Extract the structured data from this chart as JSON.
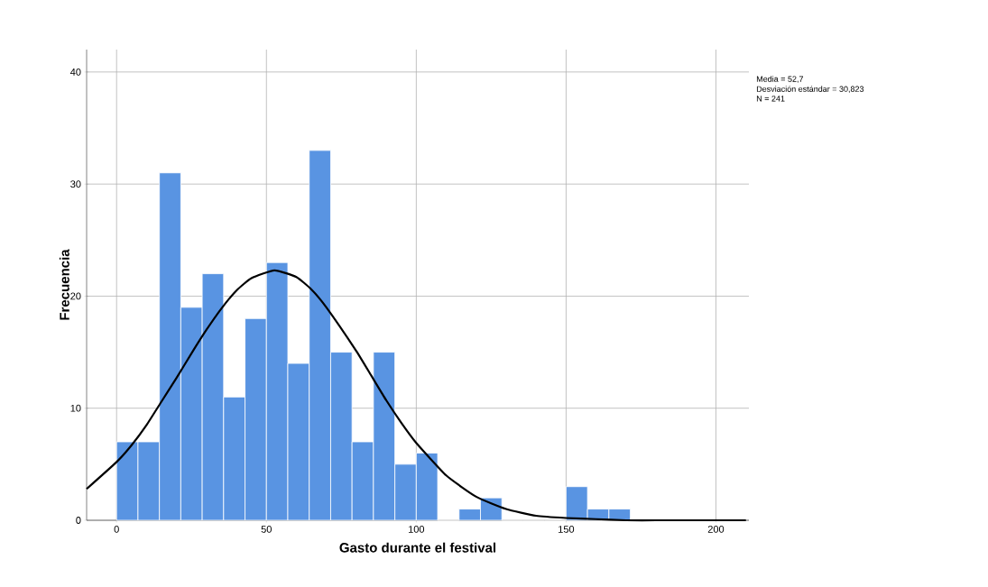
{
  "chart_data": {
    "type": "histogram",
    "xlabel": "Gasto durante el festival",
    "ylabel": "Frecuencia",
    "bins": [
      0,
      7.14,
      14.29,
      21.43,
      28.57,
      35.71,
      42.86,
      50,
      57.14,
      64.29,
      71.43,
      78.57,
      85.71,
      92.86,
      100,
      107.14,
      114.29,
      121.43,
      128.57,
      135.71,
      142.86,
      150,
      157.14,
      164.29,
      171.43
    ],
    "values": [
      7,
      7,
      31,
      19,
      22,
      11,
      18,
      23,
      14,
      33,
      15,
      7,
      15,
      5,
      6,
      0,
      1,
      2,
      0,
      0,
      0,
      3,
      1,
      1
    ],
    "color": "#5994e2",
    "series": [
      {
        "type": "line",
        "color": "#000000",
        "x": [
          -10,
          0,
          5,
          10,
          15,
          20,
          25,
          30,
          35,
          40,
          45,
          52.7,
          60,
          65,
          70,
          80,
          85,
          90,
          95,
          100,
          110,
          120,
          130,
          140,
          150,
          160,
          170,
          180,
          200,
          210
        ],
        "values": [
          2.8,
          5.2,
          6.7,
          8.5,
          10.6,
          12.7,
          14.9,
          17,
          18.9,
          20.5,
          21.6,
          22.3,
          21.7,
          20.6,
          19,
          15.1,
          12.9,
          10.7,
          8.7,
          6.9,
          4,
          2.1,
          1,
          0.4,
          0.2,
          0.1,
          0,
          0,
          0,
          0
        ]
      }
    ],
    "xlim": [
      -10,
      211
    ],
    "ylim": [
      0,
      42
    ],
    "xticks": [
      0,
      50,
      100,
      150,
      200
    ],
    "yticks": [
      0,
      10,
      20,
      30,
      40
    ],
    "grid": true,
    "annotations": [
      "Media = 52,7",
      "Desviación estándar = 30,823",
      "N = 241"
    ]
  }
}
